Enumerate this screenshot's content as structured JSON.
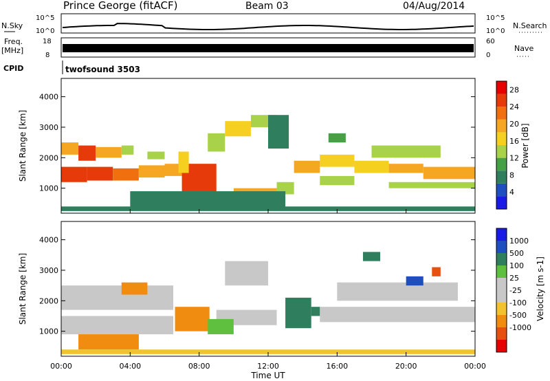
{
  "header": {
    "station": "Prince George (fitACF)",
    "beam": "Beam 03",
    "date": "04/Aug/2014"
  },
  "top_panels": {
    "nsky_label": "N.Sky",
    "nsearch_label": "N.Search",
    "nsky_ticks": [
      "10^5",
      "10^0"
    ],
    "freq_label_1": "Freq.",
    "freq_label_2": "[MHz]",
    "freq_ticks": [
      "18",
      "8"
    ],
    "nave_label": "Nave",
    "nave_ticks": [
      "60",
      "0"
    ],
    "cpid_label": "CPID",
    "cpid_value": "twofsound 3503"
  },
  "colors": {
    "power_scale": [
      "#1a1ae6",
      "#1f4fbf",
      "#2f7f5f",
      "#46a046",
      "#a8d24a",
      "#f5d020",
      "#f5a623",
      "#f07010",
      "#e63a0a",
      "#e60000"
    ],
    "velocity_scale": [
      "#1a1ae6",
      "#1f4fbf",
      "#2f7f5f",
      "#5fbf3f",
      "#c8c8c8",
      "#c8c8c8",
      "#f2c230",
      "#f08c10",
      "#e65010",
      "#e60000"
    ],
    "ground_scatter": "#c8c8c8"
  },
  "chart_data": [
    {
      "type": "heatmap",
      "panel": "power",
      "ylabel": "Slant Range [km]",
      "yticks": [
        "1000",
        "2000",
        "3000",
        "4000"
      ],
      "ylim": [
        180,
        4600
      ],
      "xlim": [
        0,
        24
      ],
      "colorbar_label": "Power [dB]",
      "colorbar_ticks": [
        "4",
        "8",
        "12",
        "16",
        "20",
        "24",
        "28"
      ],
      "colorbar_range": [
        0,
        30
      ],
      "cells": [
        [
          0.0,
          1.5,
          1200,
          1700,
          24
        ],
        [
          1.5,
          3.0,
          1250,
          1700,
          26
        ],
        [
          3.0,
          4.5,
          1250,
          1650,
          22
        ],
        [
          4.5,
          6.0,
          1350,
          1750,
          20
        ],
        [
          6.0,
          7.5,
          1400,
          1800,
          18
        ],
        [
          0.0,
          1.0,
          2100,
          2500,
          20
        ],
        [
          1.0,
          2.0,
          1900,
          2400,
          24
        ],
        [
          2.0,
          3.5,
          2000,
          2350,
          18
        ],
        [
          3.5,
          4.2,
          2100,
          2400,
          14
        ],
        [
          5.0,
          6.0,
          1950,
          2200,
          12
        ],
        [
          7.0,
          9.0,
          800,
          1800,
          26
        ],
        [
          6.8,
          7.4,
          1500,
          2200,
          16
        ],
        [
          8.5,
          9.5,
          2200,
          2800,
          14
        ],
        [
          9.5,
          11.0,
          2700,
          3200,
          16
        ],
        [
          11.0,
          12.5,
          3000,
          3400,
          14
        ],
        [
          10.0,
          12.5,
          700,
          1000,
          18
        ],
        [
          12.5,
          13.5,
          800,
          1200,
          14
        ],
        [
          13.5,
          15.0,
          1500,
          1900,
          18
        ],
        [
          15.0,
          17.0,
          1700,
          2100,
          16
        ],
        [
          15.0,
          17.0,
          1100,
          1400,
          14
        ],
        [
          17.0,
          19.0,
          1500,
          1900,
          16
        ],
        [
          19.0,
          21.0,
          1500,
          1800,
          18
        ],
        [
          21.0,
          24.0,
          1300,
          1700,
          18
        ],
        [
          19.0,
          24.0,
          1000,
          1200,
          14
        ],
        [
          18.0,
          22.0,
          2000,
          2400,
          12
        ],
        [
          15.5,
          16.5,
          2500,
          2800,
          10
        ],
        [
          0.0,
          24.0,
          250,
          400,
          6
        ],
        [
          4.0,
          13.0,
          380,
          900,
          8
        ],
        [
          12.0,
          13.2,
          2300,
          3400,
          6
        ]
      ]
    },
    {
      "type": "heatmap",
      "panel": "velocity",
      "ylabel": "Slant Range [km]",
      "yticks": [
        "1000",
        "2000",
        "3000",
        "4000"
      ],
      "ylim": [
        180,
        4600
      ],
      "xlim": [
        0,
        24
      ],
      "xlabel": "Time UT",
      "xticks": [
        "00:00",
        "04:00",
        "08:00",
        "12:00",
        "16:00",
        "20:00",
        "00:00"
      ],
      "colorbar_label": "Velocity [m s-1]",
      "colorbar_ticks": [
        "1000",
        "500",
        "100",
        "25",
        "-25",
        "-100",
        "-500",
        "-1000"
      ],
      "cells": [
        [
          0.0,
          6.5,
          1700,
          2500,
          0
        ],
        [
          0.0,
          6.5,
          900,
          1500,
          0
        ],
        [
          9.0,
          12.5,
          1200,
          1700,
          0
        ],
        [
          9.5,
          12.0,
          2500,
          3300,
          0
        ],
        [
          15.0,
          24.0,
          1300,
          1800,
          0
        ],
        [
          16.0,
          23.0,
          2000,
          2600,
          0
        ],
        [
          6.6,
          8.6,
          1000,
          1800,
          -300
        ],
        [
          1.0,
          4.5,
          400,
          900,
          -120
        ],
        [
          3.5,
          5.0,
          2200,
          2600,
          -100
        ],
        [
          8.5,
          10.0,
          900,
          1400,
          60
        ],
        [
          13.0,
          14.5,
          1100,
          2100,
          300
        ],
        [
          14.5,
          15.0,
          1500,
          1800,
          120
        ],
        [
          17.5,
          18.5,
          3300,
          3600,
          400
        ],
        [
          21.5,
          22.0,
          2800,
          3100,
          -700
        ],
        [
          20.0,
          21.0,
          2500,
          2800,
          600
        ],
        [
          0.0,
          24.0,
          250,
          400,
          -40
        ]
      ]
    }
  ]
}
